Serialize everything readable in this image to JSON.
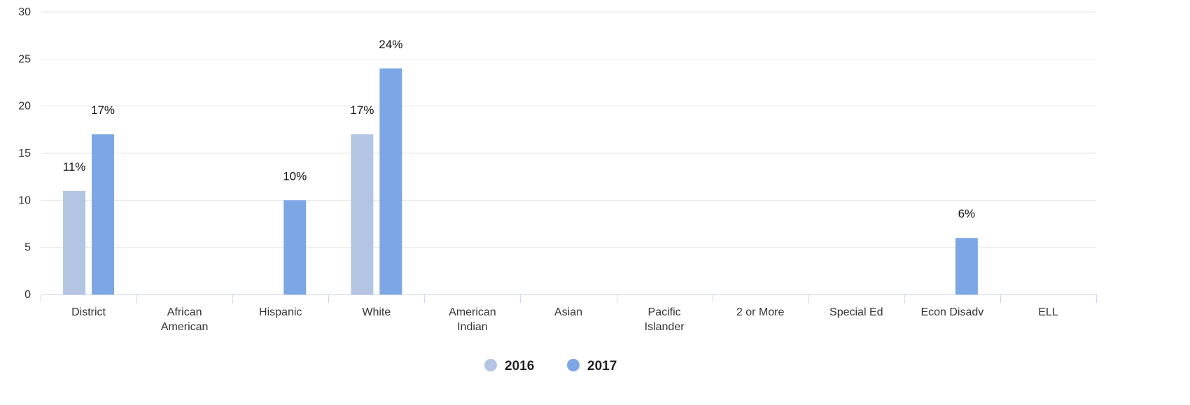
{
  "chart_data": {
    "type": "bar",
    "categories": [
      "District",
      "African American",
      "Hispanic",
      "White",
      "American Indian",
      "Asian",
      "Pacific Islander",
      "2 or More",
      "Special Ed",
      "Econ Disadv",
      "ELL"
    ],
    "category_lines": [
      [
        "District"
      ],
      [
        "African",
        "American"
      ],
      [
        "Hispanic"
      ],
      [
        "White"
      ],
      [
        "American",
        "Indian"
      ],
      [
        "Asian"
      ],
      [
        "Pacific",
        "Islander"
      ],
      [
        "2 or More"
      ],
      [
        "Special Ed"
      ],
      [
        "Econ Disadv"
      ],
      [
        "ELL"
      ]
    ],
    "series": [
      {
        "name": "2016",
        "color": "#b3c5e2",
        "values": [
          11,
          null,
          null,
          17,
          null,
          null,
          null,
          null,
          null,
          null,
          null
        ],
        "labels": [
          "11%",
          null,
          null,
          "17%",
          null,
          null,
          null,
          null,
          null,
          null,
          null
        ]
      },
      {
        "name": "2017",
        "color": "#7ca6e4",
        "values": [
          17,
          null,
          10,
          24,
          null,
          null,
          null,
          null,
          null,
          6,
          null
        ],
        "labels": [
          "17%",
          null,
          "10%",
          "24%",
          null,
          null,
          null,
          null,
          null,
          "6%",
          null
        ]
      }
    ],
    "y_ticks": [
      "0",
      "5",
      "10",
      "15",
      "20",
      "25",
      "30"
    ],
    "ylim": [
      0,
      30
    ],
    "grid": true,
    "legend_position": "bottom-center",
    "title": "",
    "xlabel": "",
    "ylabel": ""
  }
}
